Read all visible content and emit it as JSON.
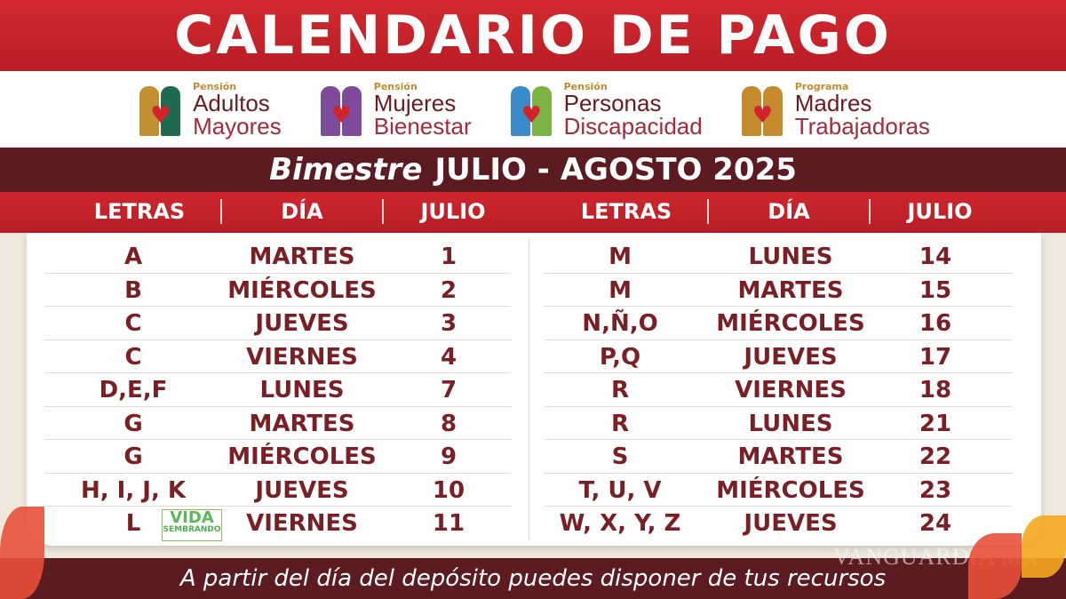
{
  "title": "CALENDARIO DE PAGO",
  "programs": [
    {
      "prefix": "Pensión",
      "line1": "Adultos",
      "line2": "Mayores",
      "colors": [
        "#c2902e",
        "#1f6b52"
      ]
    },
    {
      "prefix": "Pensión",
      "line1": "Mujeres",
      "line2": "Bienestar",
      "colors": [
        "#7d4a9c",
        "#7d4a9c"
      ]
    },
    {
      "prefix": "Pensión",
      "line1": "Personas",
      "line2": "Discapacidad",
      "colors": [
        "#3a8bc8",
        "#7cb342"
      ]
    },
    {
      "prefix": "Programa",
      "line1": "Madres",
      "line2": "Trabajadoras",
      "colors": [
        "#c48a2c",
        "#c48a2c"
      ]
    }
  ],
  "period": {
    "label": "Bimestre",
    "months": "JULIO - AGOSTO 2025"
  },
  "headers": {
    "letters": "LETRAS",
    "day": "DÍA",
    "month": "JULIO"
  },
  "left_rows": [
    {
      "letters": "A",
      "day": "MARTES",
      "date": "1"
    },
    {
      "letters": "B",
      "day": "MIÉRCOLES",
      "date": "2"
    },
    {
      "letters": "C",
      "day": "JUEVES",
      "date": "3"
    },
    {
      "letters": "C",
      "day": "VIERNES",
      "date": "4"
    },
    {
      "letters": "D,E,F",
      "day": "LUNES",
      "date": "7"
    },
    {
      "letters": "G",
      "day": "MARTES",
      "date": "8"
    },
    {
      "letters": "G",
      "day": "MIÉRCOLES",
      "date": "9"
    },
    {
      "letters": "H, I, J, K",
      "day": "JUEVES",
      "date": "10"
    },
    {
      "letters": "L",
      "day": "VIERNES",
      "date": "11"
    }
  ],
  "right_rows": [
    {
      "letters": "M",
      "day": "LUNES",
      "date": "14"
    },
    {
      "letters": "M",
      "day": "MARTES",
      "date": "15"
    },
    {
      "letters": "N,Ñ,O",
      "day": "MIÉRCOLES",
      "date": "16"
    },
    {
      "letters": "P,Q",
      "day": "JUEVES",
      "date": "17"
    },
    {
      "letters": "R",
      "day": "VIERNES",
      "date": "18"
    },
    {
      "letters": "R",
      "day": "LUNES",
      "date": "21"
    },
    {
      "letters": "S",
      "day": "MARTES",
      "date": "22"
    },
    {
      "letters": "T, U, V",
      "day": "MIÉRCOLES",
      "date": "23"
    },
    {
      "letters": "W, X, Y, Z",
      "day": "JUEVES",
      "date": "24"
    }
  ],
  "sembrando": {
    "line1": "SEMBRANDO",
    "line2": "VIDA"
  },
  "footer": "A partir del día del depósito puedes disponer de tus recursos",
  "watermark": "VANGUARDIA MX"
}
